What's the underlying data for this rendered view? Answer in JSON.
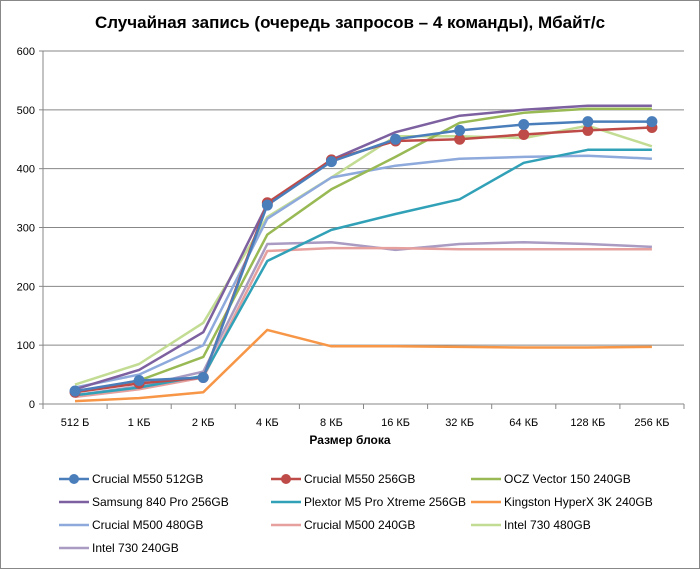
{
  "chart_data": {
    "type": "line",
    "title": "Случайная запись (очередь запросов – 4 команды), Мбайт/с",
    "xlabel": "Размер блока",
    "ylabel": "",
    "ylim": [
      0,
      600
    ],
    "yticks": [
      0,
      100,
      200,
      300,
      400,
      500,
      600
    ],
    "grid": true,
    "legend_position": "bottom",
    "categories": [
      "512 Б",
      "1 КБ",
      "2 КБ",
      "4 КБ",
      "8 КБ",
      "16 КБ",
      "32 КБ",
      "64 КБ",
      "128 КБ",
      "256 КБ"
    ],
    "series": [
      {
        "name": "Crucial M550 512GB",
        "color": "#4A7EBB",
        "marker": "circle",
        "values": [
          22,
          40,
          45,
          338,
          412,
          450,
          465,
          475,
          480,
          480
        ]
      },
      {
        "name": "Crucial M550 256GB",
        "color": "#BE4B48",
        "marker": "circle",
        "values": [
          20,
          35,
          45,
          342,
          415,
          447,
          450,
          458,
          465,
          470
        ]
      },
      {
        "name": "OCZ Vector 150 240GB",
        "color": "#98B954",
        "marker": "none",
        "values": [
          20,
          40,
          80,
          288,
          365,
          420,
          478,
          495,
          502,
          502
        ]
      },
      {
        "name": "Samsung 840 Pro 256GB",
        "color": "#7D60A0",
        "marker": "none",
        "values": [
          25,
          58,
          122,
          340,
          415,
          462,
          490,
          500,
          507,
          507
        ]
      },
      {
        "name": "Plextor M5 Pro Xtreme 256GB",
        "color": "#31A1B8",
        "marker": "none",
        "values": [
          15,
          28,
          48,
          243,
          296,
          323,
          348,
          410,
          432,
          432
        ]
      },
      {
        "name": "Kingston HyperX 3K 240GB",
        "color": "#F79646",
        "marker": "none",
        "values": [
          5,
          10,
          20,
          126,
          98,
          98,
          97,
          96,
          96,
          97
        ]
      },
      {
        "name": "Crucial M500 480GB",
        "color": "#8EA9DB",
        "marker": "none",
        "values": [
          28,
          50,
          100,
          315,
          385,
          405,
          417,
          420,
          422,
          417
        ]
      },
      {
        "name": "Crucial M500 240GB",
        "color": "#E6A09E",
        "marker": "none",
        "values": [
          12,
          25,
          45,
          260,
          265,
          265,
          263,
          263,
          263,
          263
        ]
      },
      {
        "name": "Intel 730 480GB",
        "color": "#C3DC93",
        "marker": "none",
        "values": [
          33,
          68,
          138,
          318,
          385,
          455,
          455,
          452,
          473,
          438
        ]
      },
      {
        "name": "Intel 730 240GB",
        "color": "#A99BC2",
        "marker": "none",
        "values": [
          15,
          30,
          55,
          272,
          275,
          262,
          272,
          275,
          272,
          267
        ]
      }
    ]
  }
}
